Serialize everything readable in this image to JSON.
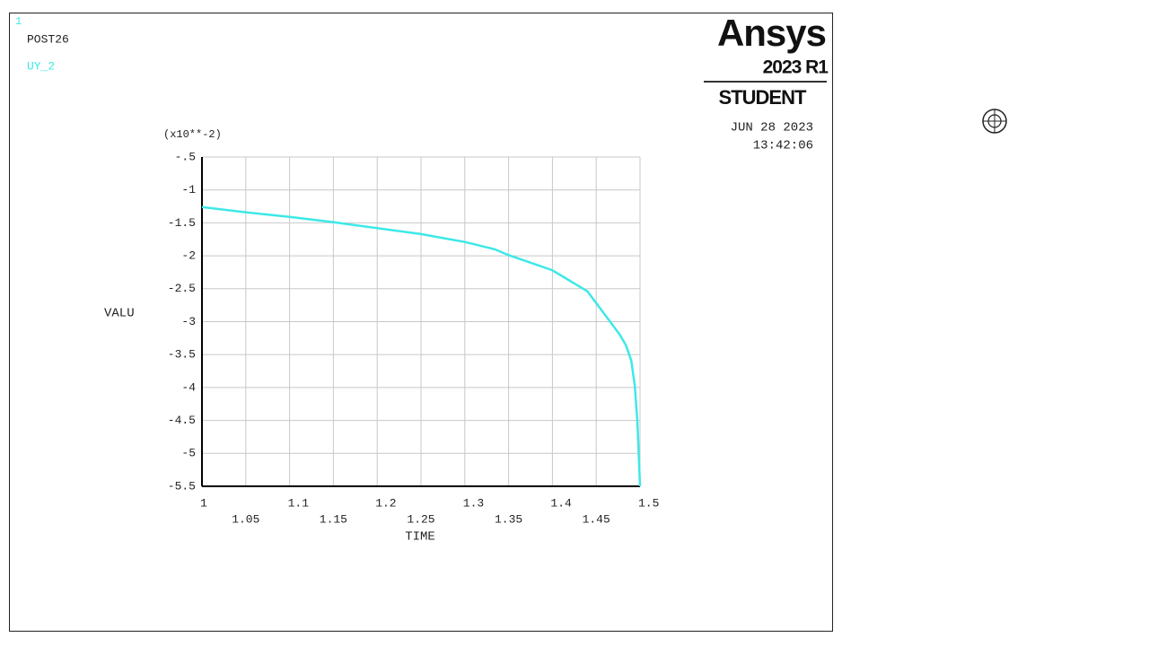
{
  "window": {
    "number": "1",
    "post": "POST26",
    "brand": "Ansys",
    "version": "2023 R1",
    "edition": "STUDENT",
    "date": "JUN 28 2023",
    "time": "13:42:06"
  },
  "chart_data": {
    "type": "line",
    "y_multiplier": "(x10**-2)",
    "ylabel": "VALU",
    "xlabel": "TIME",
    "x": [
      1,
      1.05,
      1.1,
      1.15,
      1.2,
      1.25,
      1.3,
      1.334,
      1.35,
      1.4,
      1.44,
      1.477,
      1.484,
      1.49,
      1.494,
      1.497,
      1.5
    ],
    "series": [
      {
        "name": "UY_2",
        "color": "#3ee8e8",
        "values": [
          -1.26,
          -1.34,
          -1.41,
          -1.49,
          -1.58,
          -1.67,
          -1.79,
          -1.9,
          -1.99,
          -2.22,
          -2.54,
          -3.2,
          -3.36,
          -3.59,
          -3.97,
          -4.52,
          -5.5
        ]
      }
    ],
    "xlim": [
      1,
      1.5
    ],
    "ylim": [
      -5.5,
      -0.5
    ],
    "xticks": [
      1,
      1.05,
      1.1,
      1.15,
      1.2,
      1.25,
      1.3,
      1.35,
      1.4,
      1.45,
      1.5
    ],
    "yticks": [
      {
        "value": -0.5,
        "label": "-.5"
      },
      -1,
      -1.5,
      -2,
      -2.5,
      -3,
      -3.5,
      -4,
      -4.5,
      -5,
      -5.5
    ],
    "grid": true
  }
}
